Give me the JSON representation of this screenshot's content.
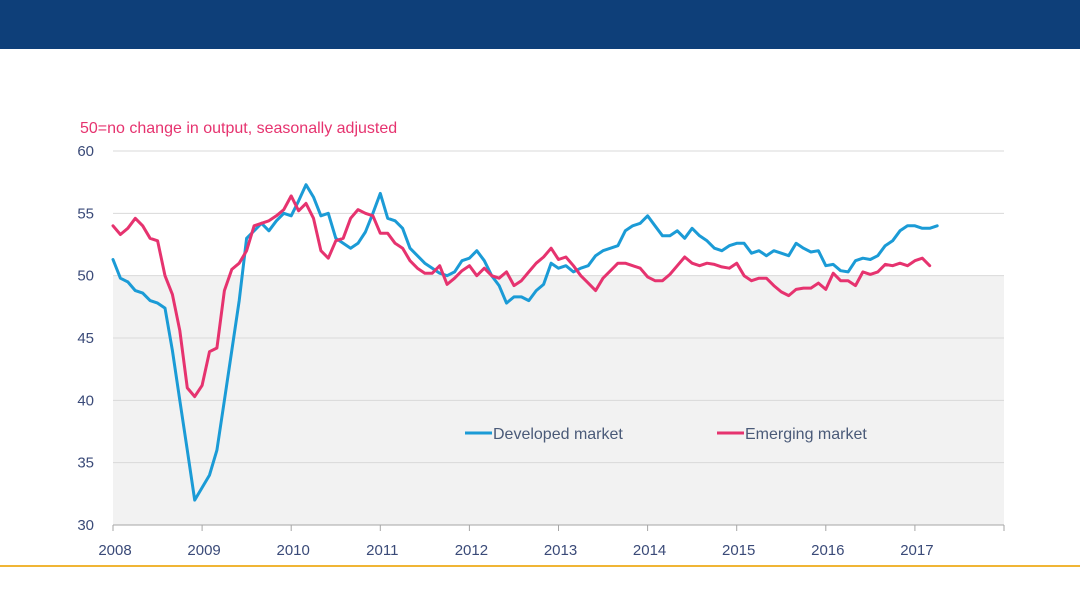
{
  "colors": {
    "header_band": "#0e3f79",
    "bottom_rule": "#f0b535",
    "developed": "#1b9bd6",
    "emerging": "#e6336f",
    "shade": "#f2f2f2",
    "gridline": "#d9d9d9",
    "subtitle": "#e6336f",
    "tick_text": "#3a4a78"
  },
  "chart_data": {
    "type": "line",
    "subtitle": "50=no change in output, seasonally adjusted",
    "ylim": [
      30,
      60
    ],
    "yticks": [
      30,
      35,
      40,
      45,
      50,
      55,
      60
    ],
    "xlim": [
      2008,
      2018
    ],
    "xtick_labels": [
      "2008",
      "2009",
      "2010",
      "2011",
      "2012",
      "2013",
      "2014",
      "2015",
      "2016",
      "2017"
    ],
    "grid": true,
    "shaded_below": 50,
    "legend_position": "bottom-center",
    "x_start": "2008-01",
    "frequency": "monthly",
    "series": [
      {
        "name": "Developed market",
        "color": "#1b9bd6",
        "values": [
          51.3,
          49.8,
          49.5,
          48.8,
          48.6,
          48.0,
          47.8,
          47.4,
          44.0,
          40.0,
          36.0,
          32.0,
          33.0,
          34.0,
          36.0,
          40.0,
          44.0,
          48.0,
          53.0,
          53.6,
          54.2,
          53.6,
          54.4,
          55.0,
          54.8,
          56.0,
          57.3,
          56.3,
          54.8,
          55.0,
          53.0,
          52.6,
          52.2,
          52.6,
          53.5,
          55.0,
          56.6,
          54.6,
          54.4,
          53.8,
          52.2,
          51.6,
          51.0,
          50.6,
          50.2,
          50.0,
          50.3,
          51.2,
          51.4,
          52.0,
          51.2,
          50.0,
          49.2,
          47.8,
          48.3,
          48.3,
          48.0,
          48.8,
          49.3,
          51.0,
          50.6,
          50.8,
          50.3,
          50.6,
          50.8,
          51.6,
          52.0,
          52.2,
          52.4,
          53.6,
          54.0,
          54.2,
          54.8,
          54.0,
          53.2,
          53.2,
          53.6,
          53.0,
          53.8,
          53.2,
          52.8,
          52.2,
          52.0,
          52.4,
          52.6,
          52.6,
          51.8,
          52.0,
          51.6,
          52.0,
          51.8,
          51.6,
          52.6,
          52.2,
          51.9,
          52.0,
          50.8,
          50.9,
          50.4,
          50.3,
          51.2,
          51.4,
          51.3,
          51.6,
          52.4,
          52.8,
          53.6,
          54.0,
          54.0,
          53.8,
          53.8,
          54.0
        ]
      },
      {
        "name": "Emerging market",
        "color": "#e6336f",
        "values": [
          54.0,
          53.3,
          53.8,
          54.6,
          54.0,
          53.0,
          52.8,
          50.0,
          48.5,
          45.6,
          41.0,
          40.3,
          41.2,
          43.9,
          44.2,
          48.8,
          50.5,
          51.0,
          52.0,
          54.0,
          54.2,
          54.4,
          54.8,
          55.3,
          56.4,
          55.2,
          55.8,
          54.6,
          52.0,
          51.4,
          52.8,
          53.0,
          54.6,
          55.3,
          55.0,
          54.8,
          53.4,
          53.4,
          52.6,
          52.2,
          51.2,
          50.6,
          50.2,
          50.2,
          50.8,
          49.3,
          49.8,
          50.4,
          50.8,
          50.0,
          50.6,
          50.0,
          49.8,
          50.3,
          49.2,
          49.6,
          50.3,
          51.0,
          51.5,
          52.2,
          51.3,
          51.5,
          50.8,
          50.0,
          49.4,
          48.8,
          49.8,
          50.4,
          51.0,
          51.0,
          50.8,
          50.6,
          49.9,
          49.6,
          49.6,
          50.1,
          50.8,
          51.5,
          51.0,
          50.8,
          51.0,
          50.9,
          50.7,
          50.6,
          51.0,
          50.0,
          49.6,
          49.8,
          49.8,
          49.2,
          48.7,
          48.4,
          48.9,
          49.0,
          49.0,
          49.4,
          48.9,
          50.2,
          49.6,
          49.6,
          49.2,
          50.3,
          50.1,
          50.3,
          50.9,
          50.8,
          51.0,
          50.8,
          51.2,
          51.4,
          50.8
        ]
      }
    ]
  }
}
